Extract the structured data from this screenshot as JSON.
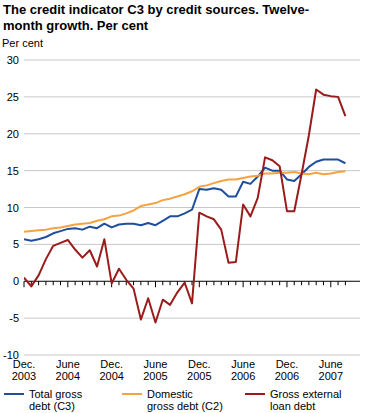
{
  "chart_data": {
    "type": "line",
    "title": "The credit indicator C3 by credit sources. Twelve-month growth. Per cent",
    "y_label": "Per cent",
    "categories": [
      "Dec. 2003",
      null,
      null,
      null,
      null,
      null,
      "June 2004",
      null,
      null,
      null,
      null,
      null,
      "Dec. 2004",
      null,
      null,
      null,
      null,
      null,
      "June 2005",
      null,
      null,
      null,
      null,
      null,
      "Dec. 2005",
      null,
      null,
      null,
      null,
      null,
      "June 2006",
      null,
      null,
      null,
      null,
      null,
      "Dec. 2006",
      null,
      null,
      null,
      null,
      null,
      "June 2007",
      null,
      null
    ],
    "series": [
      {
        "name": "Total gross debt (C3)",
        "color": "#1f4e9c",
        "values": [
          5.7,
          5.5,
          5.7,
          6.0,
          6.5,
          6.8,
          7.1,
          7.2,
          7.0,
          7.4,
          7.2,
          7.8,
          7.3,
          7.7,
          7.8,
          7.8,
          7.6,
          7.9,
          7.6,
          8.2,
          8.8,
          8.8,
          9.2,
          9.7,
          12.5,
          12.4,
          12.6,
          12.4,
          11.5,
          11.5,
          13.5,
          13.2,
          14.2,
          15.4,
          15.0,
          15.0,
          13.8,
          13.6,
          14.5,
          15.5,
          16.2,
          16.5,
          16.5,
          16.5,
          16.0
        ]
      },
      {
        "name": "Domestic gross debt (C2)",
        "color": "#f5a340",
        "values": [
          6.7,
          6.8,
          6.9,
          7.0,
          7.2,
          7.3,
          7.5,
          7.7,
          7.8,
          7.9,
          8.2,
          8.4,
          8.8,
          8.9,
          9.2,
          9.6,
          10.2,
          10.4,
          10.6,
          11.0,
          11.2,
          11.5,
          11.8,
          12.2,
          12.8,
          13.0,
          13.3,
          13.6,
          13.8,
          13.8,
          14.0,
          14.2,
          14.3,
          14.6,
          14.6,
          14.7,
          14.7,
          14.8,
          14.6,
          14.5,
          14.7,
          14.5,
          14.6,
          14.8,
          14.9
        ]
      },
      {
        "name": "Gross external loan debt",
        "color": "#9b1b1b",
        "values": [
          0.5,
          -0.7,
          0.8,
          3.0,
          4.8,
          5.2,
          5.6,
          4.3,
          3.2,
          4.2,
          2.0,
          5.7,
          -0.3,
          1.7,
          0.2,
          -1.0,
          -5.2,
          -2.3,
          -5.6,
          -2.5,
          -3.2,
          -1.5,
          -0.2,
          -3.0,
          9.3,
          8.8,
          8.4,
          7.0,
          2.5,
          2.6,
          10.4,
          8.8,
          11.3,
          16.8,
          16.4,
          15.6,
          9.5,
          9.5,
          14.5,
          19.8,
          26.0,
          25.3,
          25.1,
          25.0,
          22.4
        ]
      }
    ],
    "ylim": [
      -10,
      30
    ],
    "yticks": [
      -10,
      -5,
      0,
      5,
      10,
      15,
      20,
      25,
      30
    ],
    "grid": true,
    "legend": "bottom"
  }
}
